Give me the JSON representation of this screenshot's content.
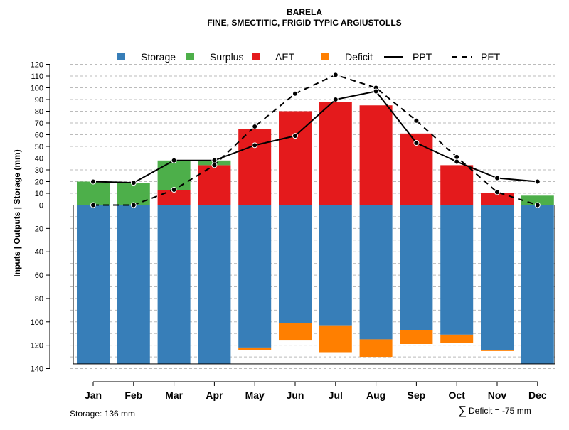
{
  "chart_data": {
    "type": "bar",
    "title": "BARELA",
    "subtitle": "FINE, SMECTITIC, FRIGID TYPIC ARGIUSTOLLS",
    "ylabel": "Inputs | Outputs | Storage    (mm)",
    "ylim_positive": [
      0,
      120
    ],
    "ylim_negative": [
      0,
      140
    ],
    "yticks_positive": [
      0,
      10,
      20,
      30,
      40,
      50,
      60,
      70,
      80,
      90,
      100,
      110,
      120
    ],
    "yticks_negative": [
      20,
      40,
      60,
      80,
      100,
      120,
      140
    ],
    "grid": true,
    "categories": [
      "Jan",
      "Feb",
      "Mar",
      "Apr",
      "May",
      "Jun",
      "Jul",
      "Aug",
      "Sep",
      "Oct",
      "Nov",
      "Dec"
    ],
    "legend": [
      {
        "key": "storage",
        "label": "Storage",
        "kind": "square"
      },
      {
        "key": "surplus",
        "label": "Surplus",
        "kind": "square"
      },
      {
        "key": "aet",
        "label": "AET",
        "kind": "square"
      },
      {
        "key": "deficit",
        "label": "Deficit",
        "kind": "square"
      },
      {
        "key": "ppt",
        "label": "PPT",
        "kind": "line"
      },
      {
        "key": "pet",
        "label": "PET",
        "kind": "dashed"
      }
    ],
    "series": {
      "aet": [
        0,
        0,
        13,
        34,
        65,
        80,
        88,
        85,
        61,
        34,
        10,
        0
      ],
      "surplus": [
        20,
        19,
        25,
        4,
        0,
        0,
        0,
        0,
        0,
        0,
        0,
        8
      ],
      "storage": [
        136,
        136,
        136,
        136,
        122,
        101,
        103,
        115,
        107,
        111,
        124,
        136
      ],
      "deficit": [
        0,
        0,
        0,
        0,
        2,
        15,
        23,
        15,
        12,
        7,
        1,
        0
      ],
      "ppt": [
        20,
        19,
        38,
        38,
        51,
        59,
        90,
        97,
        53,
        37,
        23,
        20
      ],
      "pet": [
        0,
        0,
        13,
        34,
        67,
        95,
        111,
        100,
        72,
        41,
        11,
        0
      ]
    },
    "colors": {
      "storage": "#377EB8",
      "surplus": "#4DAF4A",
      "aet": "#E41A1C",
      "deficit": "#FF7F00",
      "line": "#000000",
      "grid": "#bbbbbb"
    }
  },
  "footer": {
    "storage_note": "Storage: 136 mm",
    "deficit_symbol": "∑",
    "deficit_note": "Deficit = -75 mm"
  }
}
